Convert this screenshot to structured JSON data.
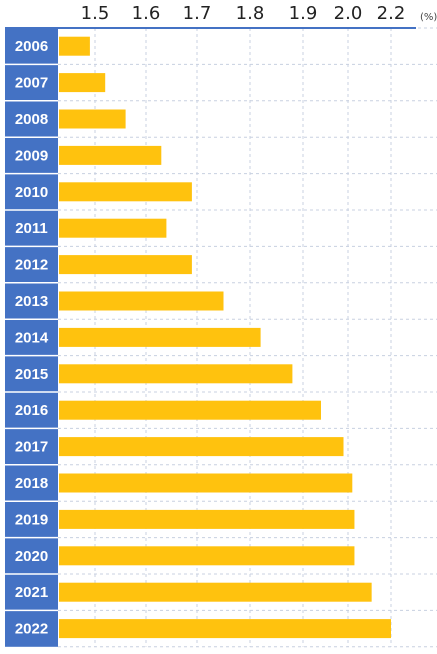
{
  "chart_data": {
    "type": "bar",
    "orientation": "horizontal",
    "unit_label": "(%)",
    "x_ticks": [
      "1.5",
      "1.6",
      "1.7",
      "1.8",
      "1.9",
      "2.0",
      "2.2"
    ],
    "categories": [
      "2006",
      "2007",
      "2008",
      "2009",
      "2010",
      "2011",
      "2012",
      "2013",
      "2014",
      "2015",
      "2016",
      "2017",
      "2018",
      "2019",
      "2020",
      "2021",
      "2022"
    ],
    "values": [
      1.49,
      1.52,
      1.56,
      1.63,
      1.69,
      1.64,
      1.69,
      1.75,
      1.82,
      1.88,
      1.94,
      1.99,
      2.02,
      2.03,
      2.03,
      2.11,
      2.2
    ],
    "grid": true,
    "colors": {
      "bar": "#FFC20E",
      "category_band": "#4472C4",
      "axis_line": "#4472C4",
      "grid": "#c8d0e0"
    }
  }
}
